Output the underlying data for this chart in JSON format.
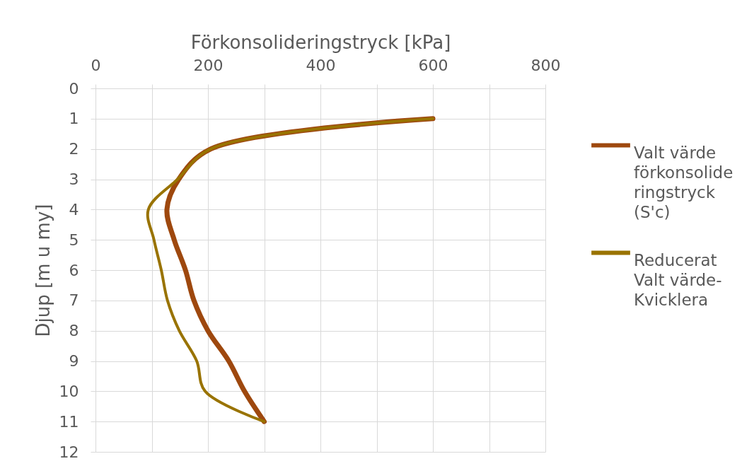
{
  "chart_data": {
    "type": "line",
    "xlabel": "Förkonsolideringstryck [kPa]",
    "ylabel": "Djup [m u my]",
    "xlim": [
      0,
      800
    ],
    "xticks": [
      0,
      {
        "value": 100,
        "label": null
      },
      200,
      {
        "value": 300,
        "label": null
      },
      400,
      {
        "value": 500,
        "label": null
      },
      600,
      {
        "value": 700,
        "label": null
      },
      800
    ],
    "ylim": [
      12,
      0
    ],
    "yticks": [
      0,
      1,
      2,
      3,
      4,
      5,
      6,
      7,
      8,
      9,
      10,
      11,
      12
    ],
    "grid": true,
    "legend": "right",
    "series": [
      {
        "name": "Valt värde förkonsolideringstryck (S'c)",
        "color": "#9e480e",
        "x": [
          600,
          205,
          148,
          127,
          140,
          160,
          175,
          200,
          237,
          265,
          300
        ],
        "values": [
          1,
          2,
          3,
          4,
          5,
          6,
          7,
          8,
          9,
          10,
          11
        ]
      },
      {
        "name": "Reducerat Valt värde-Kvicklera",
        "color": "#997300",
        "x": [
          600,
          205,
          146,
          94,
          104,
          117,
          128,
          149,
          180,
          195,
          300
        ],
        "values": [
          1,
          2,
          3,
          4,
          5,
          6,
          7,
          8,
          9,
          10,
          11
        ]
      }
    ]
  }
}
